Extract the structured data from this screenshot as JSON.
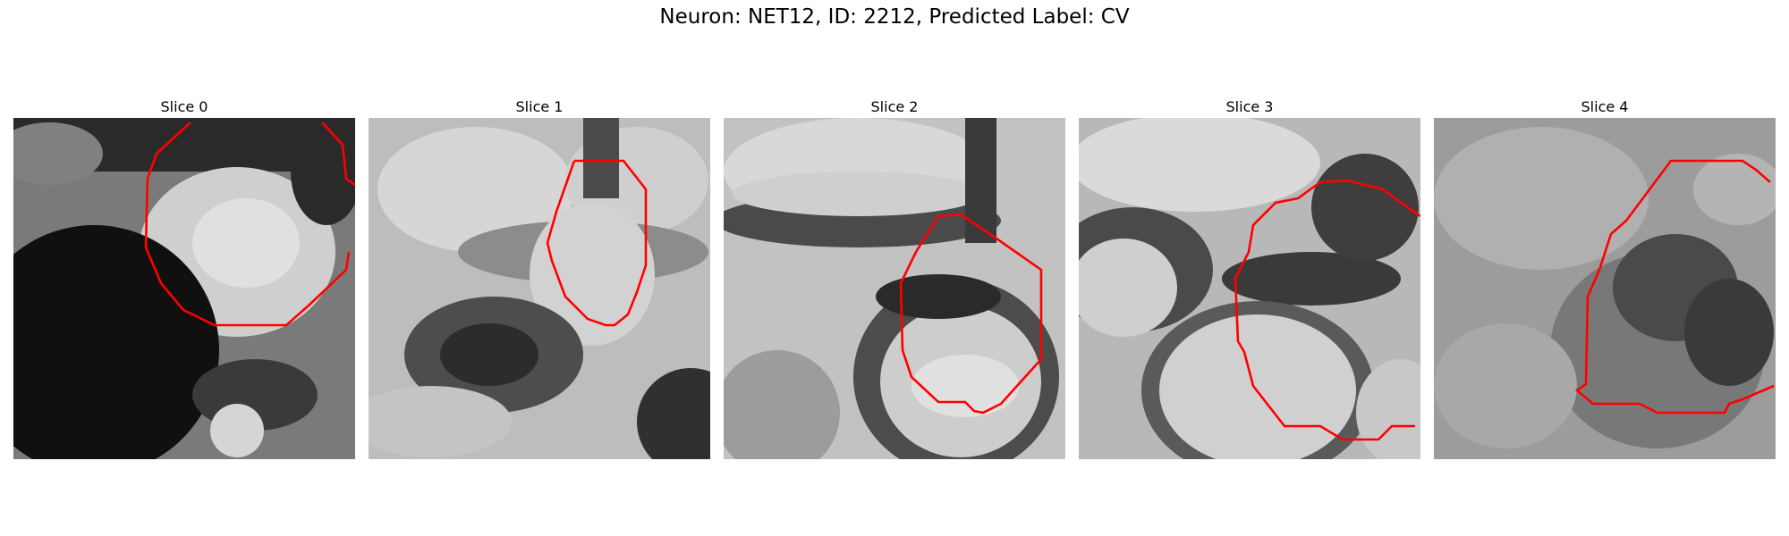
{
  "figure": {
    "title": "Neuron: NET12, ID: 2212, Predicted Label: CV",
    "panels": [
      {
        "title": "Slice 0",
        "image": "grayscale-em-crop-slice-0",
        "overlay": "red-roi-contour"
      },
      {
        "title": "Slice 1",
        "image": "grayscale-em-crop-slice-1",
        "overlay": "red-roi-contour"
      },
      {
        "title": "Slice 2",
        "image": "grayscale-em-crop-slice-2",
        "overlay": "red-roi-contour"
      },
      {
        "title": "Slice 3",
        "image": "grayscale-em-crop-slice-3",
        "overlay": "red-roi-contour"
      },
      {
        "title": "Slice 4",
        "image": "grayscale-em-crop-slice-4",
        "overlay": "red-roi-contour"
      }
    ],
    "contour_color": "#ff0000"
  }
}
